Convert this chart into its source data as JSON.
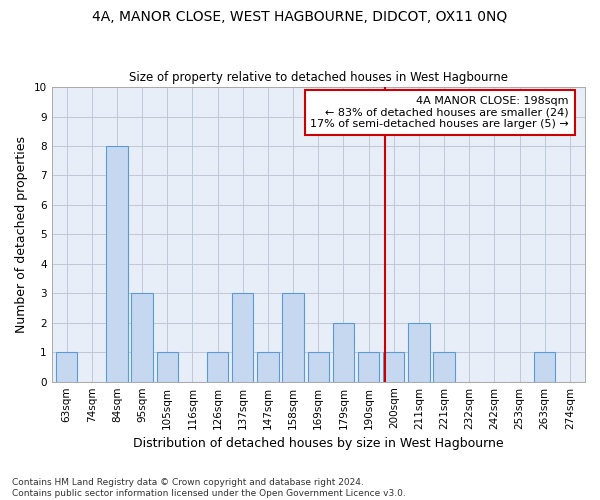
{
  "title1": "4A, MANOR CLOSE, WEST HAGBOURNE, DIDCOT, OX11 0NQ",
  "title2": "Size of property relative to detached houses in West Hagbourne",
  "xlabel": "Distribution of detached houses by size in West Hagbourne",
  "ylabel": "Number of detached properties",
  "footnote": "Contains HM Land Registry data © Crown copyright and database right 2024.\nContains public sector information licensed under the Open Government Licence v3.0.",
  "categories": [
    "63sqm",
    "74sqm",
    "84sqm",
    "95sqm",
    "105sqm",
    "116sqm",
    "126sqm",
    "137sqm",
    "147sqm",
    "158sqm",
    "169sqm",
    "179sqm",
    "190sqm",
    "200sqm",
    "211sqm",
    "221sqm",
    "232sqm",
    "242sqm",
    "253sqm",
    "263sqm",
    "274sqm"
  ],
  "values": [
    1,
    0,
    8,
    3,
    1,
    0,
    1,
    3,
    1,
    3,
    1,
    2,
    1,
    1,
    2,
    1,
    0,
    0,
    0,
    1,
    0
  ],
  "bar_color": "#c5d8f0",
  "bar_edge_color": "#5b9bd5",
  "bg_color": "#e8eef7",
  "grid_color": "#c0c8d8",
  "vline_x_index": 12.65,
  "vline_color": "#cc0000",
  "annotation_text": "4A MANOR CLOSE: 198sqm\n← 83% of detached houses are smaller (24)\n17% of semi-detached houses are larger (5) →",
  "annotation_box_color": "#ffffff",
  "annotation_box_edge": "#cc0000",
  "ylim": [
    0,
    10
  ],
  "yticks": [
    0,
    1,
    2,
    3,
    4,
    5,
    6,
    7,
    8,
    9,
    10
  ],
  "title1_fontsize": 10,
  "title2_fontsize": 8.5,
  "xlabel_fontsize": 9,
  "ylabel_fontsize": 9,
  "tick_fontsize": 7.5,
  "annotation_fontsize": 8,
  "footnote_fontsize": 6.5
}
